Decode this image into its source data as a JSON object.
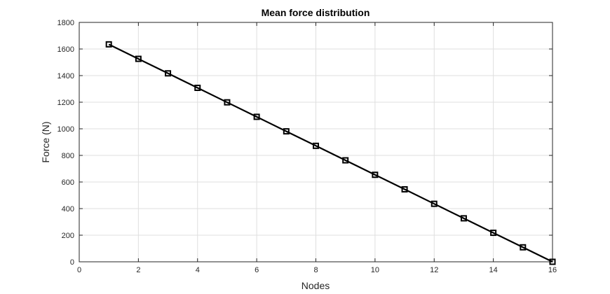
{
  "chart_data": {
    "type": "line",
    "title": "Mean force distribution",
    "xlabel": "Nodes",
    "ylabel": "Force (N)",
    "xlim": [
      0,
      16
    ],
    "ylim": [
      0,
      1800
    ],
    "xticks": [
      0,
      2,
      4,
      6,
      8,
      10,
      12,
      14,
      16
    ],
    "yticks": [
      0,
      200,
      400,
      600,
      800,
      1000,
      1200,
      1400,
      1600,
      1800
    ],
    "grid": true,
    "legend": "none",
    "marker": "square",
    "series": [
      {
        "x": [
          1,
          2,
          3,
          4,
          5,
          6,
          7,
          8,
          9,
          10,
          11,
          12,
          13,
          14,
          15,
          16
        ],
        "y": [
          1635,
          1526,
          1417,
          1308,
          1199,
          1090,
          981,
          872,
          763,
          654,
          545,
          436,
          327,
          218,
          109,
          0
        ],
        "color": "#000000"
      }
    ],
    "colors": {
      "line": "#000000",
      "grid": "#dfdfdf",
      "axis": "#262626",
      "background": "#ffffff"
    }
  }
}
